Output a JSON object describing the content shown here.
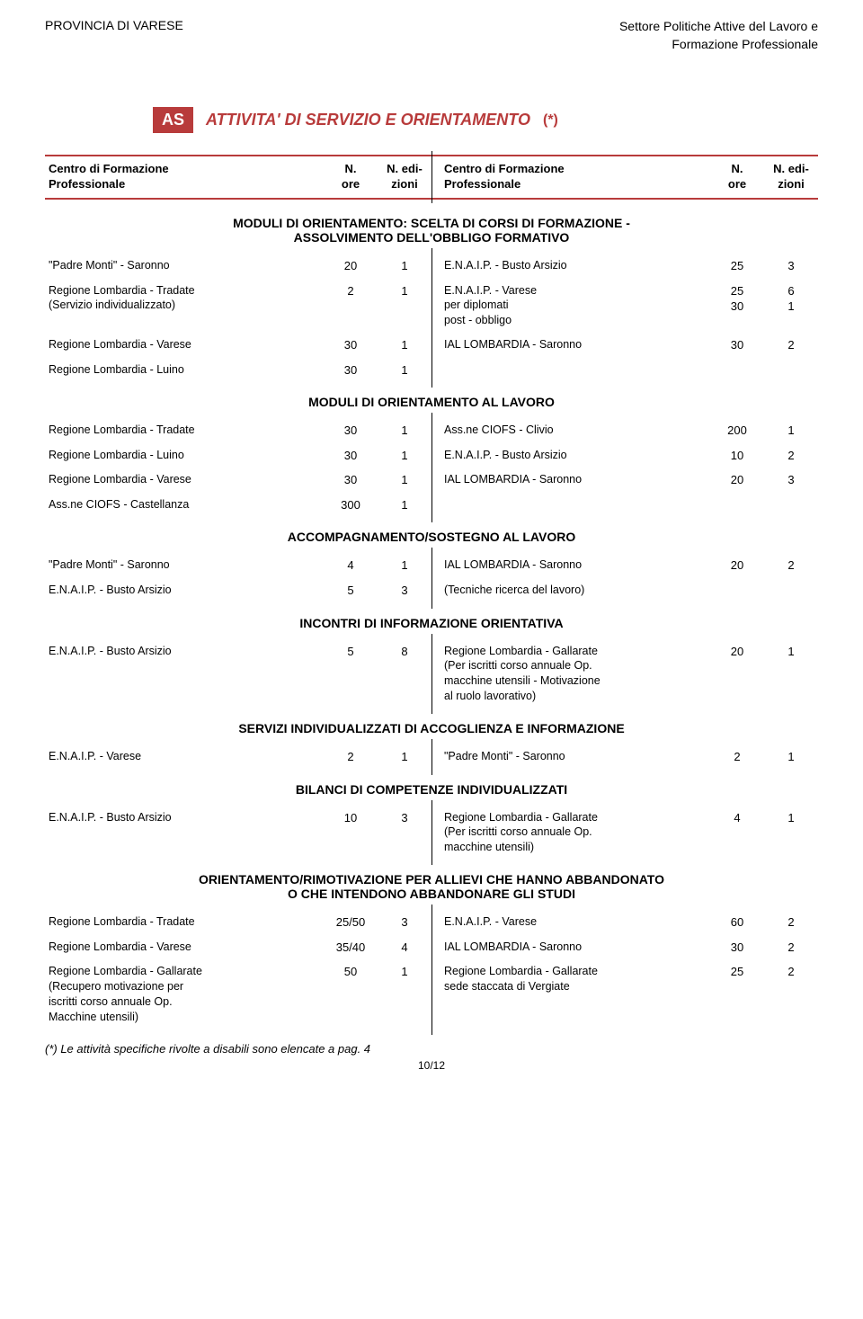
{
  "header": {
    "left": "PROVINCIA DI VARESE",
    "right1": "Settore Politiche Attive del Lavoro e",
    "right2": "Formazione Professionale"
  },
  "badge": "AS",
  "mainTitle": "ATTIVITA' DI SERVIZIO E ORIENTAMENTO",
  "asterisk": "(*)",
  "colhdr": {
    "c1a": "Centro di Formazione",
    "c1b": "Professionale",
    "c2a": "N.",
    "c2b": "ore",
    "c3a": "N. edi-",
    "c3b": "zioni"
  },
  "sections": [
    {
      "title": "MODULI DI ORIENTAMENTO: SCELTA DI CORSI DI FORMAZIONE -\nASSOLVIMENTO DELL'OBBLIGO FORMATIVO",
      "rows": [
        {
          "l": "\"Padre Monti\" - Saronno",
          "lo": "20",
          "le": "1",
          "r": "E.N.A.I.P. - Busto Arsizio",
          "ro": "25",
          "re": "3"
        },
        {
          "l": "Regione Lombardia - Tradate\n(Servizio individualizzato)",
          "lo": "2",
          "le": "1",
          "r": "E.N.A.I.P. - Varese\nper diplomati\npost - obbligo",
          "ro": "25\n30",
          "re": "6\n1"
        },
        {
          "l": "Regione Lombardia - Varese",
          "lo": "30",
          "le": "1",
          "r": "IAL LOMBARDIA - Saronno",
          "ro": "30",
          "re": "2"
        },
        {
          "l": "Regione Lombardia - Luino",
          "lo": "30",
          "le": "1",
          "r": "",
          "ro": "",
          "re": ""
        }
      ]
    },
    {
      "title": "MODULI DI ORIENTAMENTO AL LAVORO",
      "rows": [
        {
          "l": "Regione Lombardia - Tradate",
          "lo": "30",
          "le": "1",
          "r": "Ass.ne CIOFS - Clivio",
          "ro": "200",
          "re": "1"
        },
        {
          "l": "Regione Lombardia - Luino",
          "lo": "30",
          "le": "1",
          "r": "E.N.A.I.P. - Busto Arsizio",
          "ro": "10",
          "re": "2"
        },
        {
          "l": "Regione Lombardia - Varese",
          "lo": "30",
          "le": "1",
          "r": "IAL LOMBARDIA - Saronno",
          "ro": "20",
          "re": "3"
        },
        {
          "l": "Ass.ne CIOFS - Castellanza",
          "lo": "300",
          "le": "1",
          "r": "",
          "ro": "",
          "re": ""
        }
      ]
    },
    {
      "title": "ACCOMPAGNAMENTO/SOSTEGNO AL LAVORO",
      "rows": [
        {
          "l": "\"Padre Monti\" - Saronno",
          "lo": "4",
          "le": "1",
          "r": "IAL LOMBARDIA - Saronno",
          "ro": "20",
          "re": "2"
        },
        {
          "l": "E.N.A.I.P. - Busto Arsizio",
          "lo": "5",
          "le": "3",
          "r": "(Tecniche ricerca del lavoro)",
          "ro": "",
          "re": ""
        }
      ]
    },
    {
      "title": "INCONTRI DI INFORMAZIONE ORIENTATIVA",
      "rows": [
        {
          "l": "E.N.A.I.P. - Busto Arsizio",
          "lo": "5",
          "le": "8",
          "r": "Regione Lombardia - Gallarate\n(Per iscritti corso annuale Op.\nmacchine utensili - Motivazione\nal ruolo lavorativo)",
          "ro": "20",
          "re": "1"
        }
      ]
    },
    {
      "title": "SERVIZI INDIVIDUALIZZATI DI ACCOGLIENZA E INFORMAZIONE",
      "rows": [
        {
          "l": "E.N.A.I.P. - Varese",
          "lo": "2",
          "le": "1",
          "r": "\"Padre Monti\" - Saronno",
          "ro": "2",
          "re": "1"
        }
      ]
    },
    {
      "title": "BILANCI DI COMPETENZE INDIVIDUALIZZATI",
      "rows": [
        {
          "l": "E.N.A.I.P. - Busto Arsizio",
          "lo": "10",
          "le": "3",
          "r": "Regione Lombardia - Gallarate\n(Per iscritti corso annuale Op.\nmacchine utensili)",
          "ro": "4",
          "re": "1"
        }
      ]
    },
    {
      "title": "ORIENTAMENTO/RIMOTIVAZIONE PER ALLIEVI CHE HANNO ABBANDONATO\nO CHE INTENDONO ABBANDONARE GLI STUDI",
      "rows": [
        {
          "l": "Regione Lombardia - Tradate",
          "lo": "25/50",
          "le": "3",
          "r": "E.N.A.I.P. - Varese",
          "ro": "60",
          "re": "2"
        },
        {
          "l": "Regione Lombardia - Varese",
          "lo": "35/40",
          "le": "4",
          "r": "IAL LOMBARDIA - Saronno",
          "ro": "30",
          "re": "2"
        },
        {
          "l": "Regione Lombardia - Gallarate\n(Recupero motivazione per\niscritti corso annuale Op.\nMacchine utensili)",
          "lo": "50",
          "le": "1",
          "r": "Regione Lombardia - Gallarate\nsede staccata di Vergiate",
          "ro": "25",
          "re": "2"
        }
      ]
    }
  ],
  "footnote": "(*) Le attività specifiche rivolte a disabili sono elencate a pag. 4",
  "pagenum": "10/12"
}
